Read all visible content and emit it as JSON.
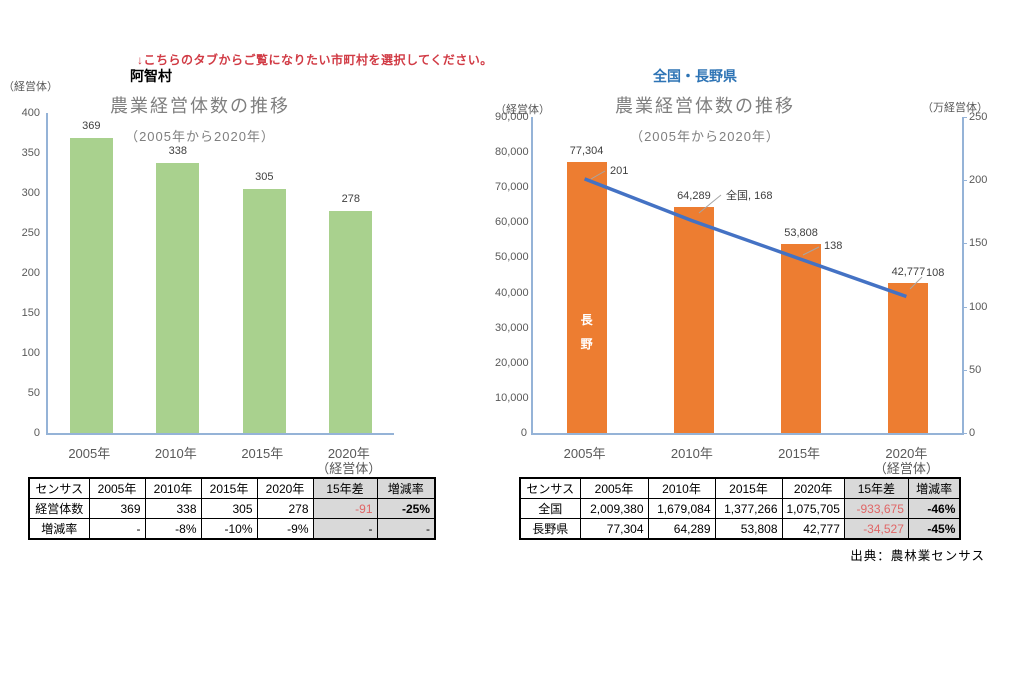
{
  "note": "↓こちらのタブからご覧になりたい市町村を選択してください。",
  "source": "出典：農林業センサス",
  "colors": {
    "bar_green": "#A9D18E",
    "bar_orange": "#ED7D31",
    "line_blue": "#4472C4",
    "axis_blue": "#95B3D7",
    "title_gray": "#7F7F7F",
    "region_blue": "#2E74B5",
    "note_red": "#D13B45",
    "table_red": "#E06666",
    "table_gray_bg": "#D9D9D9"
  },
  "left": {
    "region": "阿智村",
    "title": "農業経営体数の推移",
    "subtitle": "（2005年から2020年）",
    "unit": "（経営体）",
    "axis_note": "（経営体）",
    "table": {
      "headers": [
        "センサス",
        "2005年",
        "2010年",
        "2015年",
        "2020年",
        "15年差",
        "増減率"
      ],
      "rows": [
        [
          "経営体数",
          "369",
          "338",
          "305",
          "278",
          "-91",
          "-25%"
        ],
        [
          "増減率",
          "-",
          "-8%",
          "-10%",
          "-9%",
          "-",
          "-"
        ]
      ]
    }
  },
  "right": {
    "region": "全国・長野県",
    "title": "農業経営体数の推移",
    "subtitle": "（2005年から2020年）",
    "unit_left": "（経営体）",
    "unit_right": "（万経営体）",
    "bar_inner_label": "長\n野",
    "axis_note": "（経営体）",
    "table": {
      "headers": [
        "センサス",
        "2005年",
        "2010年",
        "2015年",
        "2020年",
        "15年差",
        "増減率"
      ],
      "rows": [
        [
          "全国",
          "2,009,380",
          "1,679,084",
          "1,377,266",
          "1,075,705",
          "-933,675",
          "-46%"
        ],
        [
          "長野県",
          "77,304",
          "64,289",
          "53,808",
          "42,777",
          "-34,527",
          "-45%"
        ]
      ]
    }
  },
  "chart_data": [
    {
      "id": "achi-village",
      "type": "bar",
      "title": "農業経営体数の推移",
      "subtitle": "（2005年から2020年）",
      "ylabel": "（経営体）",
      "categories": [
        "2005年",
        "2010年",
        "2015年",
        "2020年"
      ],
      "values": [
        369,
        338,
        305,
        278
      ],
      "labels": [
        "369",
        "338",
        "305",
        "278"
      ],
      "ylim": [
        0,
        400
      ],
      "yticks": [
        "400",
        "350",
        "300",
        "250",
        "200",
        "150",
        "100",
        "50",
        "0"
      ],
      "bar_color": "#A9D18E",
      "grid": false,
      "legend": "none"
    },
    {
      "id": "national-nagano",
      "type": "bar+line",
      "title": "農業経営体数の推移",
      "subtitle": "（2005年から2020年）",
      "ylabel_left": "（経営体）",
      "ylabel_right": "（万経営体）",
      "categories": [
        "2005年",
        "2010年",
        "2015年",
        "2020年"
      ],
      "series": [
        {
          "name": "長野",
          "type": "bar",
          "axis": "left",
          "values": [
            77304,
            64289,
            53808,
            42777
          ],
          "labels": [
            "77,304",
            "64,289",
            "53,808",
            "42,777"
          ],
          "color": "#ED7D31"
        },
        {
          "name": "全国",
          "type": "line",
          "axis": "right",
          "values": [
            201,
            168,
            138,
            108
          ],
          "labels": [
            "201",
            "全国, 168",
            "138",
            "108"
          ],
          "color": "#4472C4"
        }
      ],
      "ylim_left": [
        0,
        90000
      ],
      "yticks_left": [
        "90,000",
        "80,000",
        "70,000",
        "60,000",
        "50,000",
        "40,000",
        "30,000",
        "20,000",
        "10,000",
        "0"
      ],
      "ylim_right": [
        0,
        250
      ],
      "yticks_right": [
        "250",
        "200",
        "150",
        "100",
        "50",
        "0"
      ],
      "grid": false,
      "legend": "none"
    }
  ]
}
